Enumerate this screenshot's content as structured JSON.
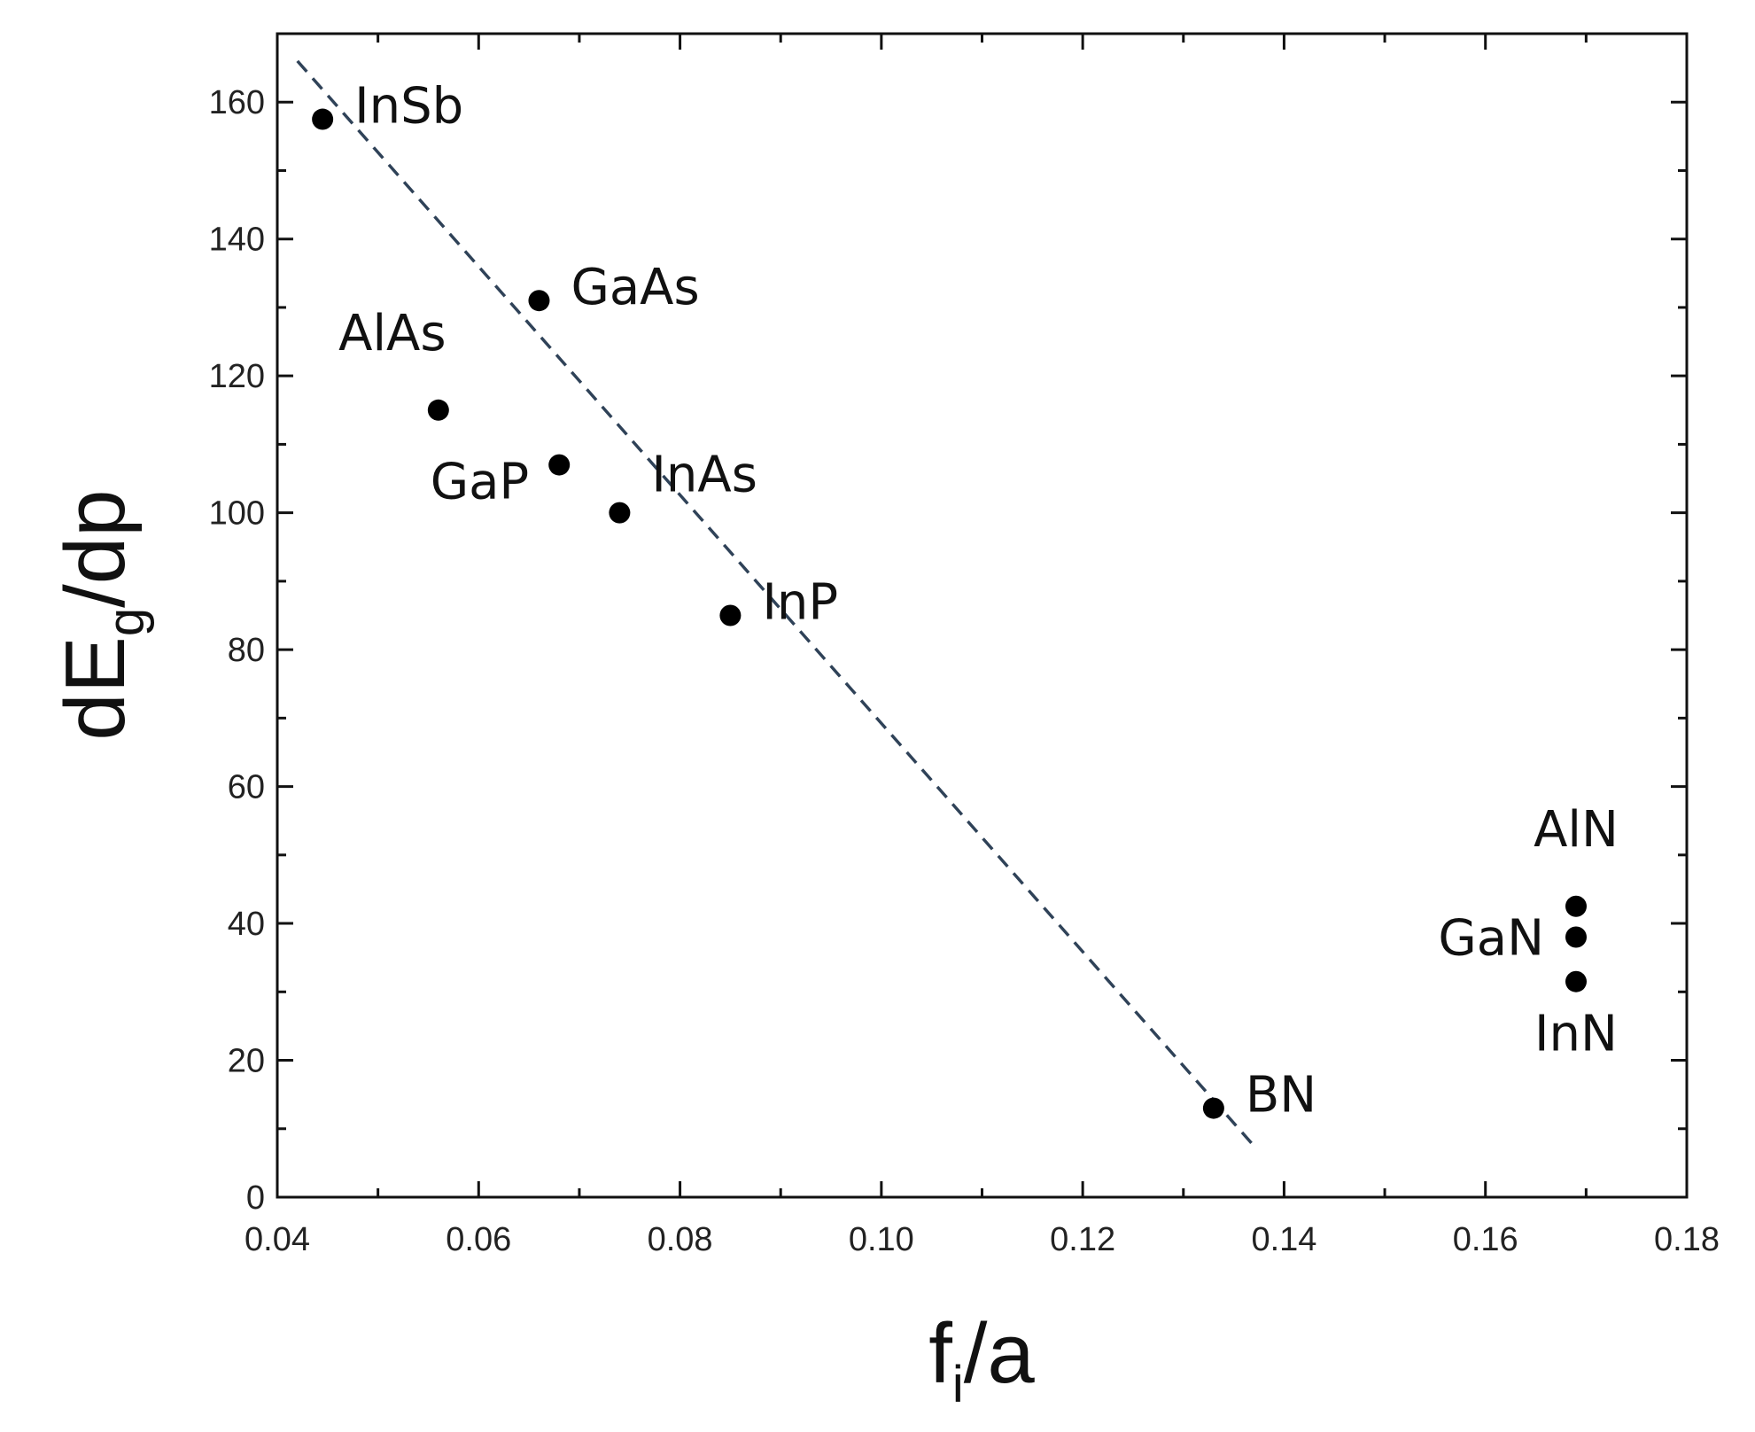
{
  "chart_data": {
    "type": "scatter",
    "title": "",
    "xlabel_main": "f",
    "xlabel_sub": "i",
    "xlabel_tail": "/a",
    "ylabel_main": "dE",
    "ylabel_sub": "g",
    "ylabel_tail": "/dp",
    "xlim": [
      0.04,
      0.18
    ],
    "ylim": [
      0,
      170
    ],
    "x_ticks": [
      0.04,
      0.06,
      0.08,
      0.1,
      0.12,
      0.14,
      0.16,
      0.18
    ],
    "x_tick_labels": [
      "0.04",
      "0.06",
      "0.08",
      "0.10",
      "0.12",
      "0.14",
      "0.16",
      "0.18"
    ],
    "y_ticks": [
      0,
      20,
      40,
      60,
      80,
      100,
      120,
      140,
      160
    ],
    "y_tick_labels": [
      "0",
      "20",
      "40",
      "60",
      "80",
      "100",
      "120",
      "140",
      "160"
    ],
    "grid": false,
    "points": [
      {
        "label": "InSb",
        "x": 0.0445,
        "y": 157.5,
        "label_side": "right"
      },
      {
        "label": "GaAs",
        "x": 0.066,
        "y": 131,
        "label_side": "right"
      },
      {
        "label": "AlAs",
        "x": 0.056,
        "y": 115,
        "label_side": "above"
      },
      {
        "label": "GaP",
        "x": 0.068,
        "y": 107,
        "label_side": "left-below"
      },
      {
        "label": "InAs",
        "x": 0.074,
        "y": 100,
        "label_side": "right-above"
      },
      {
        "label": "InP",
        "x": 0.085,
        "y": 85,
        "label_side": "right"
      },
      {
        "label": "BN",
        "x": 0.133,
        "y": 13,
        "label_side": "right"
      },
      {
        "label": "AlN",
        "x": 0.169,
        "y": 42.5,
        "label_side": "above"
      },
      {
        "label": "GaN",
        "x": 0.169,
        "y": 38,
        "label_side": "left"
      },
      {
        "label": "InN",
        "x": 0.169,
        "y": 31.5,
        "label_side": "below"
      }
    ],
    "fit_line": {
      "style": "dashed",
      "color": "#2f4258",
      "x": [
        0.042,
        0.137
      ],
      "y": [
        166,
        7.5
      ]
    }
  }
}
